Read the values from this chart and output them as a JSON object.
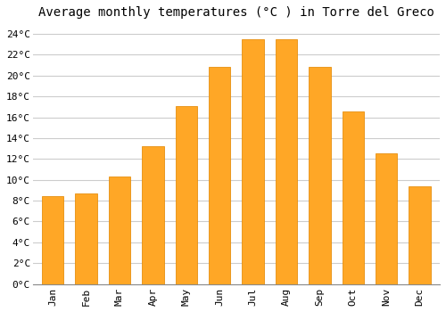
{
  "title": "Average monthly temperatures (°C ) in Torre del Greco",
  "months": [
    "Jan",
    "Feb",
    "Mar",
    "Apr",
    "May",
    "Jun",
    "Jul",
    "Aug",
    "Sep",
    "Oct",
    "Nov",
    "Dec"
  ],
  "temperatures": [
    8.4,
    8.7,
    10.3,
    13.2,
    17.1,
    20.8,
    23.5,
    23.5,
    20.8,
    16.6,
    12.5,
    9.4
  ],
  "bar_color": "#FFA726",
  "bar_edge_color": "#E69010",
  "background_color": "#FFFFFF",
  "plot_bg_color": "#FFFFFF",
  "grid_color": "#CCCCCC",
  "ylim": [
    0,
    25
  ],
  "ytick_step": 2,
  "title_fontsize": 10,
  "tick_fontsize": 8,
  "bar_width": 0.65
}
